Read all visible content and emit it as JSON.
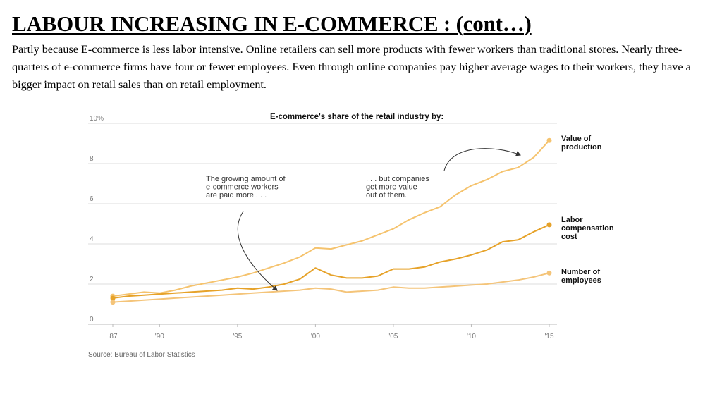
{
  "slide": {
    "title": "LABOUR INCREASING IN E-COMMERCE : (cont…)",
    "body": "Partly because E-commerce is less labor intensive. Online retailers can sell more products with fewer workers than traditional stores. Nearly three-quarters of e-commerce firms have four or fewer employees. Even through online companies pay higher average wages to their workers, they have a bigger impact on retail sales than on retail employment."
  },
  "chart_data": {
    "type": "line",
    "title": "E-commerce's share of the retail industry by:",
    "x_ticks": [
      {
        "value": 1987,
        "label": "'87"
      },
      {
        "value": 1990,
        "label": "'90"
      },
      {
        "value": 1995,
        "label": "'95"
      },
      {
        "value": 2000,
        "label": "'00"
      },
      {
        "value": 2005,
        "label": "'05"
      },
      {
        "value": 2010,
        "label": "'10"
      },
      {
        "value": 2015,
        "label": "'15"
      }
    ],
    "y_ticks": [
      {
        "value": 0,
        "label": "0"
      },
      {
        "value": 2,
        "label": "2"
      },
      {
        "value": 4,
        "label": "4"
      },
      {
        "value": 6,
        "label": "6"
      },
      {
        "value": 8,
        "label": "8"
      },
      {
        "value": 10,
        "label": "10%"
      }
    ],
    "xlim": [
      1987,
      2015
    ],
    "ylim": [
      0,
      10
    ],
    "grid": "horizontal",
    "x": [
      1987,
      1988,
      1989,
      1990,
      1991,
      1992,
      1993,
      1994,
      1995,
      1996,
      1997,
      1998,
      1999,
      2000,
      2001,
      2002,
      2003,
      2004,
      2005,
      2006,
      2007,
      2008,
      2009,
      2010,
      2011,
      2012,
      2013,
      2014,
      2015
    ],
    "series": [
      {
        "name": "Value of\nproduction",
        "color": "#f5c36e",
        "values": [
          1.4,
          1.5,
          1.6,
          1.55,
          1.7,
          1.9,
          2.05,
          2.2,
          2.35,
          2.55,
          2.8,
          3.05,
          3.35,
          3.8,
          3.75,
          3.95,
          4.15,
          4.45,
          4.75,
          5.2,
          5.55,
          5.85,
          6.45,
          6.9,
          7.2,
          7.6,
          7.8,
          8.3,
          9.15
        ]
      },
      {
        "name": "Labor\ncompensation\ncost",
        "color": "#e6a229",
        "values": [
          1.3,
          1.4,
          1.45,
          1.5,
          1.55,
          1.6,
          1.65,
          1.7,
          1.8,
          1.75,
          1.85,
          2.0,
          2.25,
          2.8,
          2.45,
          2.3,
          2.3,
          2.4,
          2.75,
          2.75,
          2.85,
          3.1,
          3.25,
          3.45,
          3.7,
          4.1,
          4.2,
          4.6,
          4.95
        ]
      },
      {
        "name": "Number of\nemployees",
        "color": "#f4c479",
        "values": [
          1.1,
          1.15,
          1.2,
          1.25,
          1.3,
          1.35,
          1.4,
          1.45,
          1.5,
          1.55,
          1.6,
          1.65,
          1.7,
          1.8,
          1.75,
          1.6,
          1.65,
          1.7,
          1.85,
          1.8,
          1.8,
          1.85,
          1.9,
          1.95,
          2.0,
          2.1,
          2.2,
          2.35,
          2.55
        ]
      }
    ],
    "annotations": [
      {
        "text": "The growing amount of\ne-commerce workers\nare paid more . . ."
      },
      {
        "text": ". . . but companies\nget more value\nout of them."
      }
    ],
    "source": "Source: Bureau of Labor Statistics"
  }
}
